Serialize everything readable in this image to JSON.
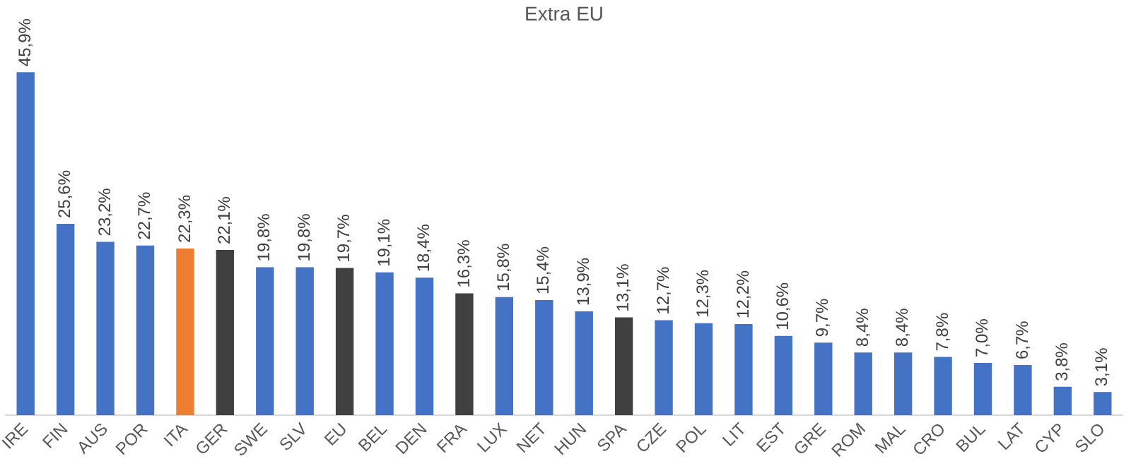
{
  "chart_data": {
    "type": "bar",
    "title": "Extra EU",
    "categories": [
      "IRE",
      "FIN",
      "AUS",
      "POR",
      "ITA",
      "GER",
      "SWE",
      "SLV",
      "EU",
      "BEL",
      "DEN",
      "FRA",
      "LUX",
      "NET",
      "HUN",
      "SPA",
      "CZE",
      "POL",
      "LIT",
      "EST",
      "GRE",
      "ROM",
      "MAL",
      "CRO",
      "BUL",
      "LAT",
      "CYP",
      "SLO"
    ],
    "values": [
      45.9,
      25.6,
      23.2,
      22.7,
      22.3,
      22.1,
      19.8,
      19.8,
      19.7,
      19.1,
      18.4,
      16.3,
      15.8,
      15.4,
      13.9,
      13.1,
      12.7,
      12.3,
      12.2,
      10.6,
      9.7,
      8.4,
      8.4,
      7.8,
      7.0,
      6.7,
      3.8,
      3.1
    ],
    "colors": [
      "#4472c4",
      "#4472c4",
      "#4472c4",
      "#4472c4",
      "#ed7d31",
      "#404040",
      "#4472c4",
      "#4472c4",
      "#404040",
      "#4472c4",
      "#4472c4",
      "#404040",
      "#4472c4",
      "#4472c4",
      "#4472c4",
      "#404040",
      "#4472c4",
      "#4472c4",
      "#4472c4",
      "#4472c4",
      "#4472c4",
      "#4472c4",
      "#4472c4",
      "#4472c4",
      "#4472c4",
      "#4472c4",
      "#4472c4",
      "#4472c4"
    ],
    "value_labels": [
      "45,9%",
      "25,6%",
      "23,2%",
      "22,7%",
      "22,3%",
      "22,1%",
      "19,8%",
      "19,8%",
      "19,7%",
      "19,1%",
      "18,4%",
      "16,3%",
      "15,8%",
      "15,4%",
      "13,9%",
      "13,1%",
      "12,7%",
      "12,3%",
      "12,2%",
      "10,6%",
      "9,7%",
      "8,4%",
      "8,4%",
      "7,8%",
      "7,0%",
      "6,7%",
      "3,8%",
      "3,1%"
    ],
    "grid": false,
    "legend": false
  }
}
